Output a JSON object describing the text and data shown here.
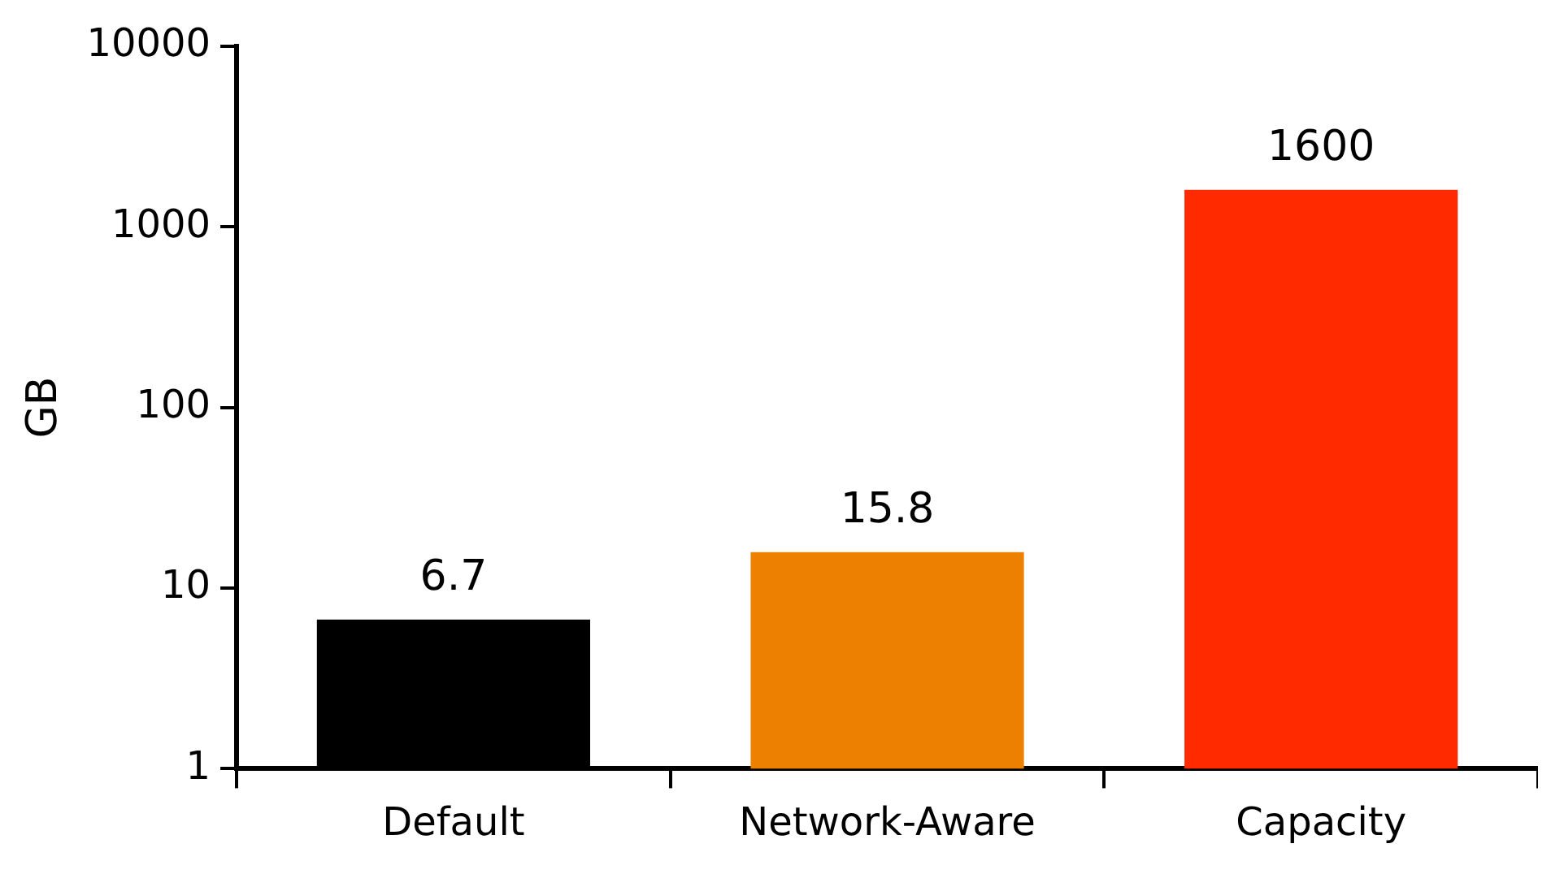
{
  "chart_data": {
    "type": "bar",
    "ylabel": "GB",
    "categories": [
      "Default",
      "Network-Aware",
      "Capacity"
    ],
    "values": [
      6.7,
      15.8,
      1600
    ],
    "colors": [
      "#000000",
      "#ee8000",
      "#ff2a00"
    ],
    "ylim": [
      1,
      10000
    ],
    "yticks": [
      1,
      10,
      100,
      1000,
      10000
    ],
    "log": true,
    "grid": false,
    "legend": false,
    "data_labels": true
  }
}
